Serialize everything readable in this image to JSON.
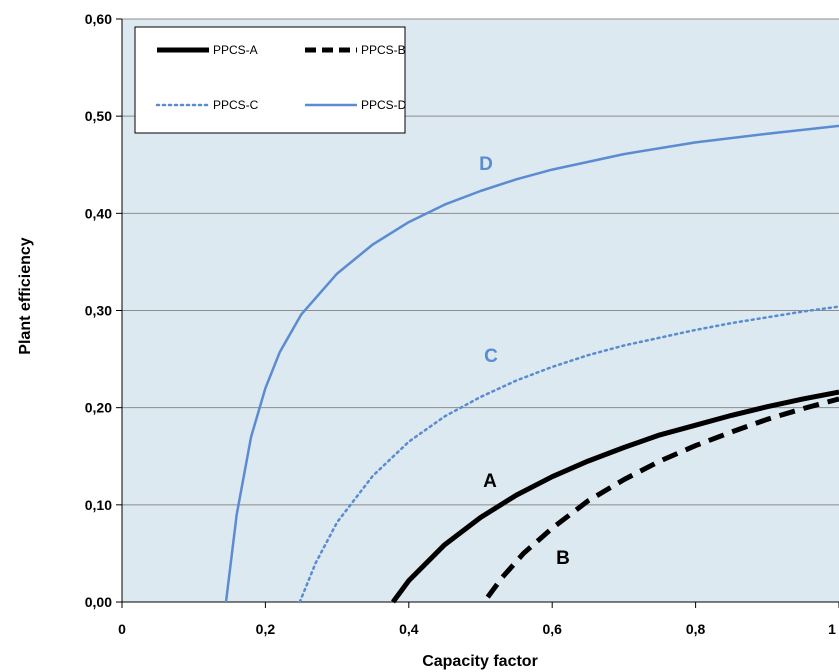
{
  "chart_data": {
    "type": "line",
    "title": "",
    "xlabel": "Capacity factor",
    "ylabel": "Plant efficiency",
    "xlim": [
      0,
      1
    ],
    "ylim": [
      0,
      0.6
    ],
    "x_ticks": [
      "0",
      "0,2",
      "0,4",
      "0,6",
      "0,8",
      "1"
    ],
    "y_ticks": [
      "0,00",
      "0,10",
      "0,20",
      "0,30",
      "0,40",
      "0,50",
      "0,60"
    ],
    "grid": "horizontal",
    "legend_position": "top-left",
    "background_color": "#dce9f1",
    "series": [
      {
        "name": "PPCS-A",
        "curve_label": "A",
        "color": "#000000",
        "style": "solid-thick",
        "x": [
          0.378,
          0.4,
          0.45,
          0.5,
          0.55,
          0.6,
          0.65,
          0.7,
          0.75,
          0.8,
          0.85,
          0.9,
          0.95,
          1.0
        ],
        "y": [
          0.0,
          0.022,
          0.059,
          0.087,
          0.11,
          0.129,
          0.145,
          0.159,
          0.172,
          0.182,
          0.192,
          0.201,
          0.209,
          0.216
        ]
      },
      {
        "name": "PPCS-B",
        "curve_label": "B",
        "color": "#000000",
        "style": "dashed-thick",
        "x": [
          0.51,
          0.53,
          0.56,
          0.6,
          0.65,
          0.7,
          0.75,
          0.8,
          0.85,
          0.9,
          0.95,
          1.0
        ],
        "y": [
          0.005,
          0.025,
          0.05,
          0.076,
          0.104,
          0.126,
          0.145,
          0.161,
          0.175,
          0.188,
          0.199,
          0.209
        ]
      },
      {
        "name": "PPCS-C",
        "curve_label": "C",
        "color": "#5b8bd0",
        "style": "dotted",
        "x": [
          0.248,
          0.27,
          0.3,
          0.35,
          0.4,
          0.45,
          0.5,
          0.55,
          0.6,
          0.65,
          0.7,
          0.75,
          0.8,
          0.85,
          0.9,
          0.95,
          1.0
        ],
        "y": [
          0.0,
          0.04,
          0.082,
          0.13,
          0.165,
          0.191,
          0.211,
          0.228,
          0.242,
          0.254,
          0.264,
          0.272,
          0.28,
          0.287,
          0.293,
          0.299,
          0.304
        ]
      },
      {
        "name": "PPCS-D",
        "curve_label": "D",
        "color": "#5b8bd0",
        "style": "solid",
        "x": [
          0.145,
          0.16,
          0.18,
          0.2,
          0.22,
          0.25,
          0.3,
          0.35,
          0.4,
          0.45,
          0.5,
          0.55,
          0.6,
          0.7,
          0.8,
          0.9,
          1.0
        ],
        "y": [
          0.0,
          0.09,
          0.17,
          0.22,
          0.257,
          0.296,
          0.338,
          0.368,
          0.391,
          0.409,
          0.423,
          0.435,
          0.445,
          0.461,
          0.473,
          0.482,
          0.49
        ]
      }
    ]
  }
}
